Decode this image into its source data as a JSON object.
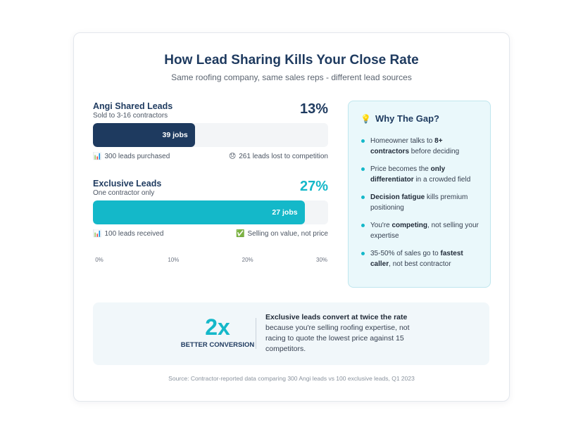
{
  "title": "How Lead Sharing Kills Your Close Rate",
  "subtitle": "Same roofing company, same sales reps - different lead sources",
  "colors": {
    "shared": "#1e3a5f",
    "exclusive": "#14b8c9",
    "track": "#f3f5f7"
  },
  "chart_data": {
    "type": "bar",
    "orientation": "horizontal",
    "xlim": [
      0,
      30
    ],
    "ticks": [
      "0%",
      "10%",
      "20%",
      "30%"
    ],
    "grid": false,
    "categories": [
      "Angi Shared Leads",
      "Exclusive Leads"
    ],
    "values": [
      13,
      27
    ],
    "bar_labels": [
      "39 jobs",
      "27 jobs"
    ]
  },
  "blocks": [
    {
      "name": "Angi Shared Leads",
      "sub": "Sold to 3-16 contractors",
      "pct": "13%",
      "foot_left_icon": "bar-chart-emoji",
      "foot_left": "300 leads purchased",
      "foot_right_icon": "sad-face-emoji",
      "foot_right": "261 leads lost to competition"
    },
    {
      "name": "Exclusive Leads",
      "sub": "One contractor only",
      "pct": "27%",
      "foot_left_icon": "bar-chart-emoji",
      "foot_left": "100 leads received",
      "foot_right_icon": "check-mark-emoji",
      "foot_right": "Selling on value, not price"
    }
  ],
  "gap": {
    "icon": "lightbulb-emoji",
    "title": "Why The Gap?",
    "items": [
      {
        "pre": "Homeowner talks to ",
        "bold": "8+ contractors",
        "post": " before deciding"
      },
      {
        "pre": "Price becomes the ",
        "bold": "only differentiator",
        "post": " in a crowded field"
      },
      {
        "pre": "",
        "bold": "Decision fatigue",
        "post": " kills premium positioning"
      },
      {
        "pre": "You're ",
        "bold": "competing",
        "post": ", not selling your expertise"
      },
      {
        "pre": "35-50% of sales go to ",
        "bold": "fastest caller",
        "post": ", not best contractor"
      }
    ]
  },
  "summary": {
    "number": "2x",
    "label": "BETTER CONVERSION",
    "headline": "Exclusive leads convert at twice the rate",
    "body": "because you're selling roofing expertise, not racing to quote the lowest price against 15 competitors."
  },
  "source": "Source: Contractor-reported data comparing 300 Angi leads vs 100 exclusive leads, Q1 2023"
}
